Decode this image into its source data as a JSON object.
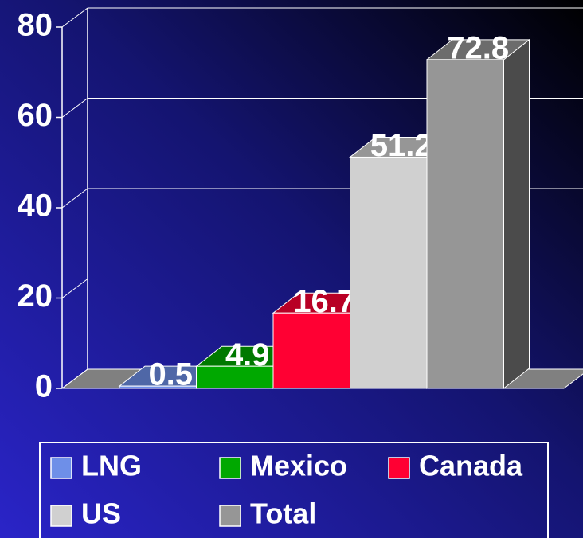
{
  "chart_data": {
    "type": "bar3d",
    "categories": [
      null
    ],
    "series": [
      {
        "name": "LNG",
        "color": "#6e8fe8",
        "values": [
          0.5
        ]
      },
      {
        "name": "Mexico",
        "color": "#00a800",
        "values": [
          4.9
        ]
      },
      {
        "name": "Canada",
        "color": "#ff0033",
        "values": [
          16.7
        ]
      },
      {
        "name": "US",
        "color": "#d0d0d0",
        "values": [
          51.2
        ]
      },
      {
        "name": "Total",
        "color": "#969696",
        "values": [
          72.8
        ]
      }
    ],
    "ylim": [
      0,
      80
    ],
    "yticks": [
      0,
      20,
      40,
      60,
      80
    ],
    "grid": true,
    "legend": "bottom"
  }
}
